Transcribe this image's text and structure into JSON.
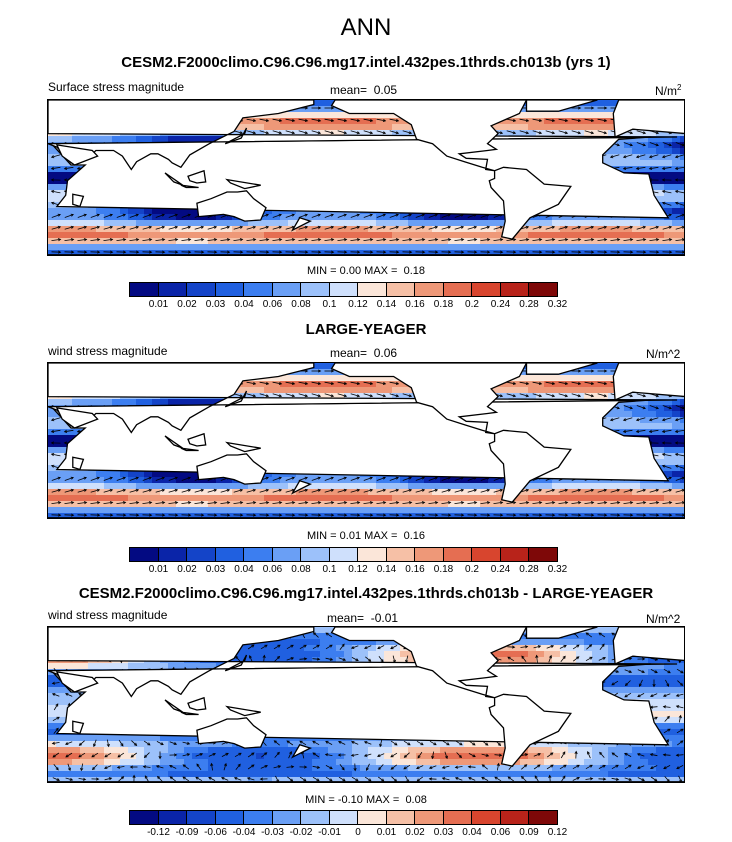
{
  "page_title": "ANN",
  "colormaps": {
    "magnitude": [
      "#030a82",
      "#0a24a8",
      "#1444c8",
      "#2060e0",
      "#3c7ef0",
      "#6a9ff5",
      "#9cc1fa",
      "#cfe0fc",
      "#fbe6d9",
      "#f6c0a6",
      "#ee9878",
      "#e56e52",
      "#d8452e",
      "#b8231a",
      "#7e0808"
    ],
    "difference": [
      "#030a82",
      "#0a24a8",
      "#1444c8",
      "#2060e0",
      "#3c7ef0",
      "#6a9ff5",
      "#9cc1fa",
      "#cfe0fc",
      "#fbe6d9",
      "#f6c0a6",
      "#ee9878",
      "#e56e52",
      "#d8452e",
      "#b8231a",
      "#7e0808"
    ]
  },
  "land_color": "#ffffff",
  "panels": [
    {
      "title": "CESM2.F2000climo.C96.C96.mg17.intel.432pes.1thrds.ch013b (yrs 1)",
      "left_label": "Surface stress magnitude",
      "mean_label": "mean=",
      "mean_value": "0.05",
      "units_base": "N/m",
      "units_sup": "2",
      "min_label": "MIN =",
      "min_value": "0.00",
      "max_label": "MAX =",
      "max_value": "0.18",
      "levels": [
        "0.01",
        "0.02",
        "0.03",
        "0.04",
        "0.06",
        "0.08",
        "0.1",
        "0.12",
        "0.14",
        "0.16",
        "0.18",
        "0.2",
        "0.24",
        "0.28",
        "0.32"
      ],
      "kind": "magnitude"
    },
    {
      "title": "LARGE-YEAGER",
      "left_label": "wind stress magnitude",
      "mean_label": "mean=",
      "mean_value": "0.06",
      "units_base": "N/m^2",
      "units_sup": "",
      "min_label": "MIN =",
      "min_value": "0.01",
      "max_label": "MAX =",
      "max_value": "0.16",
      "levels": [
        "0.01",
        "0.02",
        "0.03",
        "0.04",
        "0.06",
        "0.08",
        "0.1",
        "0.12",
        "0.14",
        "0.16",
        "0.18",
        "0.2",
        "0.24",
        "0.28",
        "0.32"
      ],
      "kind": "magnitude"
    },
    {
      "title": "CESM2.F2000climo.C96.C96.mg17.intel.432pes.1thrds.ch013b - LARGE-YEAGER",
      "left_label": "wind stress magnitude",
      "mean_label": "mean=",
      "mean_value": "-0.01",
      "units_base": "N/m^2",
      "units_sup": "",
      "min_label": "MIN =",
      "min_value": "-0.10",
      "max_label": "MAX =",
      "max_value": "0.08",
      "levels": [
        "-0.12",
        "-0.09",
        "-0.06",
        "-0.04",
        "-0.03",
        "-0.02",
        "-0.01",
        "0",
        "0.01",
        "0.02",
        "0.03",
        "0.04",
        "0.06",
        "0.09",
        "0.12"
      ],
      "kind": "difference"
    }
  ],
  "chart_data": [
    {
      "type": "heatmap",
      "title": "CESM2.F2000climo.C96.C96.mg17.intel.432pes.1thrds.ch013b (yrs 1)",
      "variable": "Surface stress magnitude",
      "units": "N/m^2",
      "mean": 0.05,
      "min": 0.0,
      "max": 0.18,
      "contour_levels": [
        0.01,
        0.02,
        0.03,
        0.04,
        0.06,
        0.08,
        0.1,
        0.12,
        0.14,
        0.16,
        0.18,
        0.2,
        0.24,
        0.28,
        0.32
      ],
      "overlay": "wind stress vectors"
    },
    {
      "type": "heatmap",
      "title": "LARGE-YEAGER",
      "variable": "wind stress magnitude",
      "units": "N/m^2",
      "mean": 0.06,
      "min": 0.01,
      "max": 0.16,
      "contour_levels": [
        0.01,
        0.02,
        0.03,
        0.04,
        0.06,
        0.08,
        0.1,
        0.12,
        0.14,
        0.16,
        0.18,
        0.2,
        0.24,
        0.28,
        0.32
      ],
      "overlay": "wind stress vectors"
    },
    {
      "type": "heatmap",
      "title": "CESM2.F2000climo.C96.C96.mg17.intel.432pes.1thrds.ch013b - LARGE-YEAGER",
      "variable": "wind stress magnitude",
      "units": "N/m^2",
      "mean": -0.01,
      "min": -0.1,
      "max": 0.08,
      "contour_levels": [
        -0.12,
        -0.09,
        -0.06,
        -0.04,
        -0.03,
        -0.02,
        -0.01,
        0,
        0.01,
        0.02,
        0.03,
        0.04,
        0.06,
        0.09,
        0.12
      ],
      "overlay": "wind stress difference vectors"
    }
  ]
}
